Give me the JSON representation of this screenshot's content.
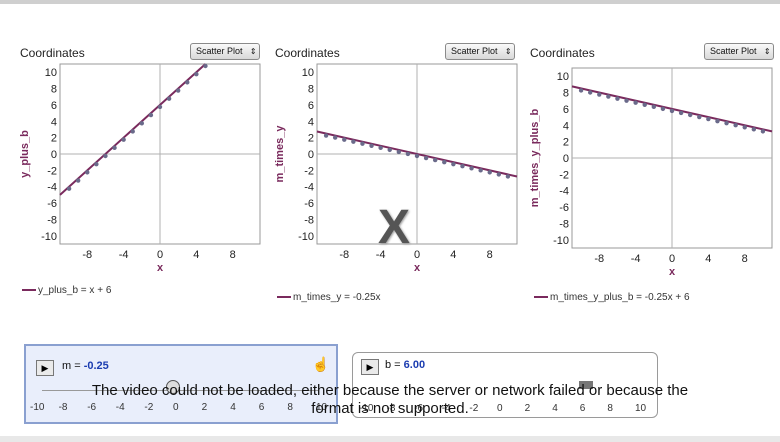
{
  "graphs": [
    {
      "title": "Coordinates",
      "plot_type": "Scatter Plot",
      "ylabel": "y_plus_b",
      "xlabel": "x",
      "legend": "y_plus_b = x + 6",
      "yticks": [
        "10",
        "8",
        "6",
        "4",
        "2",
        "0",
        "-2",
        "-4",
        "-6",
        "-8",
        "-10"
      ],
      "xticks": [
        "-8",
        "-4",
        "0",
        "4",
        "8"
      ]
    },
    {
      "title": "Coordinates",
      "plot_type": "Scatter Plot",
      "ylabel": "m_times_y",
      "xlabel": "x",
      "legend": "m_times_y = -0.25x",
      "yticks": [
        "10",
        "8",
        "6",
        "4",
        "2",
        "0",
        "-2",
        "-4",
        "-6",
        "-8",
        "-10"
      ],
      "xticks": [
        "-8",
        "-4",
        "0",
        "4",
        "8"
      ]
    },
    {
      "title": "Coordinates",
      "plot_type": "Scatter Plot",
      "ylabel": "m_times_y_plus_b",
      "xlabel": "x",
      "legend": "m_times_y_plus_b = -0.25x + 6",
      "yticks": [
        "10",
        "8",
        "6",
        "4",
        "2",
        "0",
        "-2",
        "-4",
        "-6",
        "-8",
        "-10"
      ],
      "xticks": [
        "-8",
        "-4",
        "0",
        "4",
        "8"
      ]
    }
  ],
  "chart_data": [
    {
      "type": "scatter",
      "title": "Coordinates",
      "xlabel": "x",
      "ylabel": "y_plus_b",
      "xlim": [
        -11,
        11
      ],
      "ylim": [
        -11,
        11
      ],
      "line": {
        "slope": 1,
        "intercept": 6
      }
    },
    {
      "type": "scatter",
      "title": "Coordinates",
      "xlabel": "x",
      "ylabel": "m_times_y",
      "xlim": [
        -11,
        11
      ],
      "ylim": [
        -11,
        11
      ],
      "line": {
        "slope": -0.25,
        "intercept": 0
      }
    },
    {
      "type": "scatter",
      "title": "Coordinates",
      "xlabel": "x",
      "ylabel": "m_times_y_plus_b",
      "xlim": [
        -11,
        11
      ],
      "ylim": [
        -11,
        11
      ],
      "line": {
        "slope": -0.25,
        "intercept": 6
      }
    }
  ],
  "overlay_mark": "X",
  "sliders": {
    "m": {
      "name": "m",
      "value": "-0.25",
      "scale": [
        "-10",
        "-8",
        "-6",
        "-4",
        "-2",
        "0",
        "2",
        "4",
        "6",
        "8",
        "10"
      ]
    },
    "b": {
      "name": "b",
      "value": "6.00",
      "scale": [
        "-10",
        "-8",
        "-6",
        "-4",
        "-2",
        "0",
        "2",
        "4",
        "6",
        "8",
        "10"
      ]
    }
  },
  "error": {
    "line1": "The video could not be loaded, either because the server or network failed or because the",
    "line2": "format is not supported."
  },
  "colors": {
    "line": "#7a2a5d",
    "points": "#6a6a8a",
    "axis": "#b0b0b0"
  }
}
